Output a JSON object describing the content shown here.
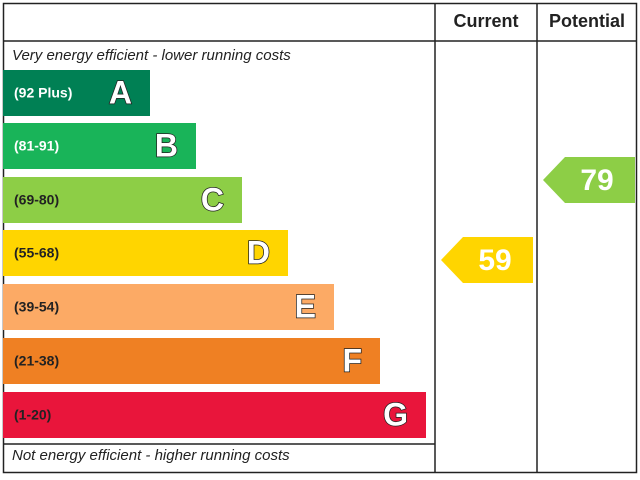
{
  "header": {
    "current": "Current",
    "potential": "Potential"
  },
  "top_note": "Very energy efficient - lower running costs",
  "bottom_note": "Not energy efficient - higher running costs",
  "bands": [
    {
      "range": "(92 Plus)",
      "letter": "A",
      "color": "#008054"
    },
    {
      "range": "(81-91)",
      "letter": "B",
      "color": "#19b459"
    },
    {
      "range": "(69-80)",
      "letter": "C",
      "color": "#8dce46"
    },
    {
      "range": "(55-68)",
      "letter": "D",
      "color": "#ffd500"
    },
    {
      "range": "(39-54)",
      "letter": "E",
      "color": "#fcaa65"
    },
    {
      "range": "(21-38)",
      "letter": "F",
      "color": "#ef8023"
    },
    {
      "range": "(1-20)",
      "letter": "G",
      "color": "#e9153b"
    }
  ],
  "current": {
    "value": 59,
    "color": "#ffd500"
  },
  "potential": {
    "value": 79,
    "color": "#8dce46"
  }
}
